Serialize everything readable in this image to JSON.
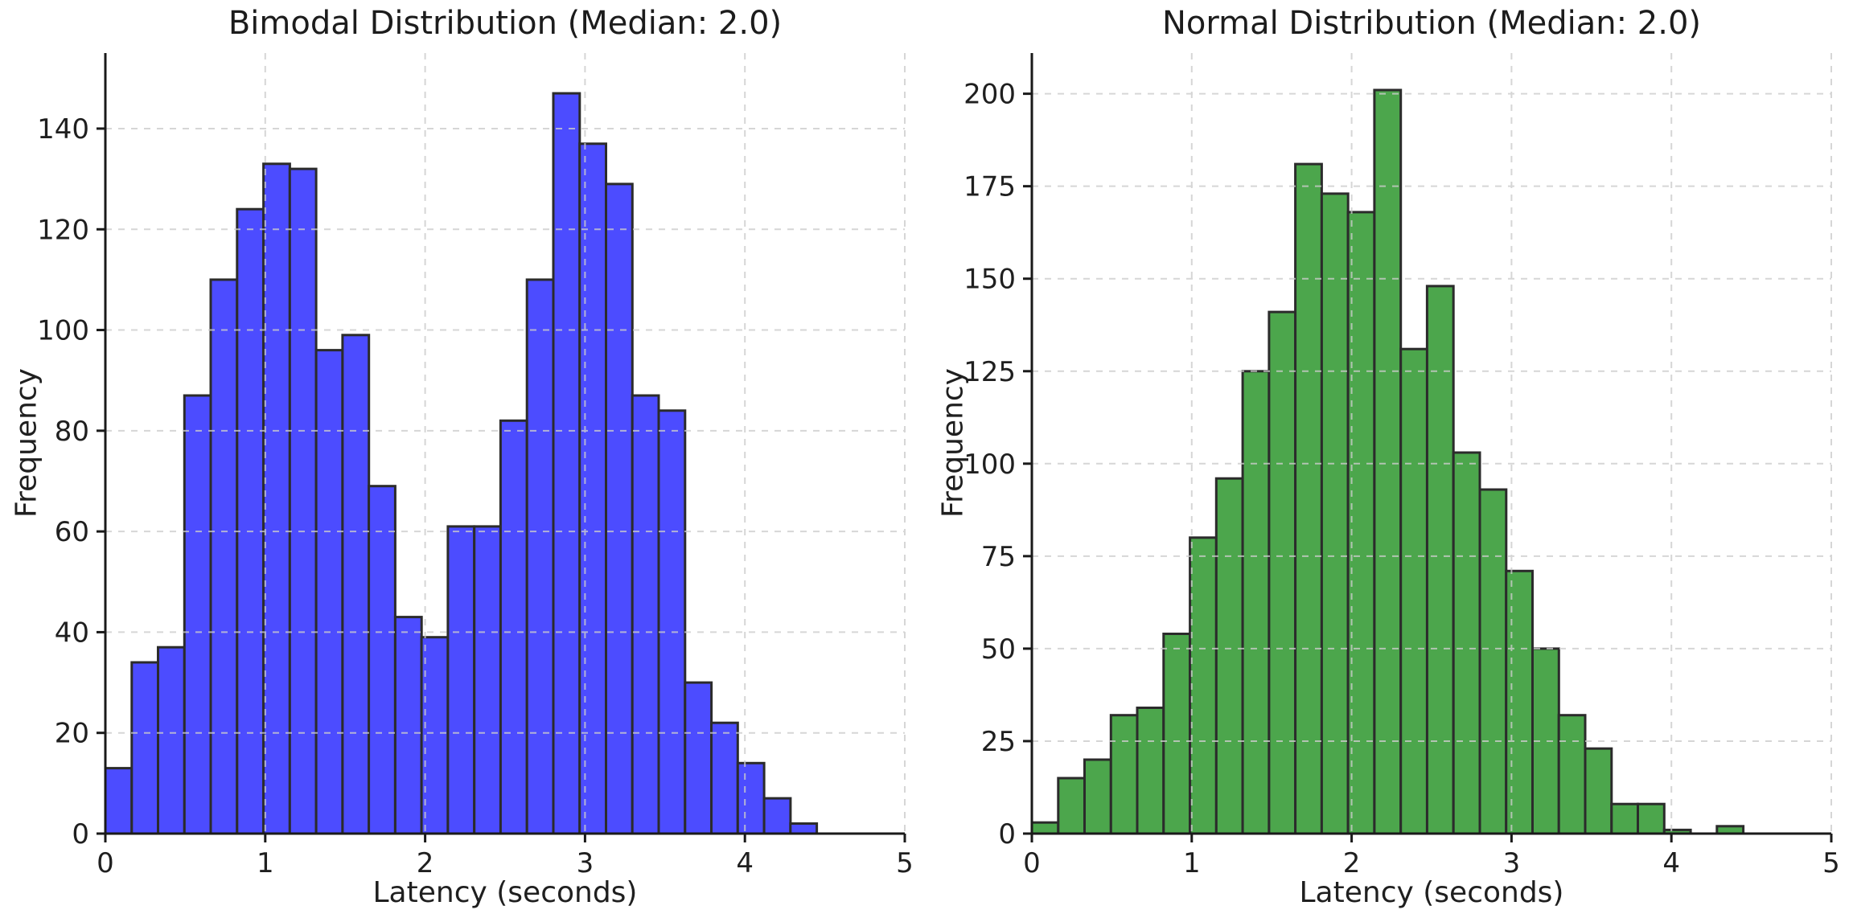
{
  "figure": {
    "background_color": "#ffffff",
    "panel_count": 2
  },
  "chart_data": [
    {
      "type": "bar",
      "subtype": "histogram",
      "title": "Bimodal Distribution (Median: 2.0)",
      "xlabel": "Latency (seconds)",
      "ylabel": "Frequency",
      "bin_start": 0.0,
      "bin_width": 0.1648,
      "values": [
        13,
        34,
        37,
        87,
        110,
        124,
        133,
        132,
        96,
        99,
        69,
        43,
        39,
        61,
        61,
        82,
        110,
        147,
        137,
        129,
        87,
        84,
        30,
        22,
        14,
        7,
        2
      ],
      "xlim": [
        0,
        5
      ],
      "ylim": [
        0,
        155
      ],
      "xticks": [
        0,
        1,
        2,
        3,
        4,
        5
      ],
      "yticks": [
        0,
        20,
        40,
        60,
        80,
        100,
        120,
        140
      ],
      "grid": true,
      "grid_linestyle": "dashed",
      "legend_position": "none",
      "bar_color": "#4c4cff",
      "edge_color": "#2b2b2b",
      "grid_color": "#cccccc",
      "axis_color": "#1a1a1a",
      "text_color": "#1f1f1f"
    },
    {
      "type": "bar",
      "subtype": "histogram",
      "title": "Normal Distribution (Median: 2.0)",
      "xlabel": "Latency (seconds)",
      "ylabel": "Frequency",
      "bin_start": 0.0,
      "bin_width": 0.1648,
      "values": [
        3,
        15,
        20,
        32,
        34,
        54,
        80,
        96,
        125,
        141,
        181,
        173,
        168,
        201,
        131,
        148,
        103,
        93,
        71,
        50,
        32,
        23,
        8,
        8,
        1,
        0,
        2
      ],
      "xlim": [
        0,
        5
      ],
      "ylim": [
        0,
        211
      ],
      "xticks": [
        0,
        1,
        2,
        3,
        4,
        5
      ],
      "yticks": [
        0,
        25,
        50,
        75,
        100,
        125,
        150,
        175,
        200
      ],
      "grid": true,
      "grid_linestyle": "dashed",
      "legend_position": "none",
      "bar_color": "#4ca64c",
      "edge_color": "#2b2b2b",
      "grid_color": "#cccccc",
      "axis_color": "#1a1a1a",
      "text_color": "#1f1f1f"
    }
  ]
}
